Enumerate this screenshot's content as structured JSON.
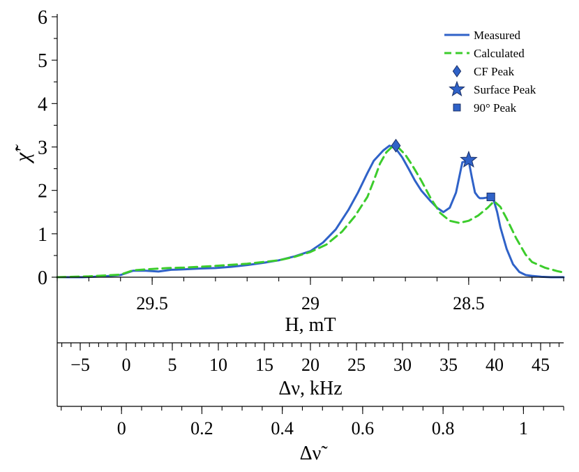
{
  "chart_data": {
    "type": "line",
    "ylabel": "χ̃′",
    "ylim": [
      0,
      6
    ],
    "y_ticks": [
      "0",
      "1",
      "2",
      "3",
      "4",
      "5",
      "6"
    ],
    "axes": [
      {
        "id": "field",
        "label": "H, mT",
        "range": [
          29.8,
          28.2
        ],
        "reversed": true,
        "major_ticks": [
          29.5,
          29,
          28.5
        ],
        "major_labels": [
          "29.5",
          "29",
          "28.5"
        ],
        "minor_step": 0.1
      },
      {
        "id": "freq",
        "label": "Δν, kHz",
        "range": [
          -7.5,
          47.5
        ],
        "major_ticks": [
          -5,
          0,
          5,
          10,
          15,
          20,
          25,
          30,
          35,
          40,
          45
        ],
        "major_labels": [
          "−5",
          "0",
          "5",
          "10",
          "15",
          "20",
          "25",
          "30",
          "35",
          "40",
          "45"
        ],
        "minor_step": 1
      },
      {
        "id": "norm",
        "label": "Δν̃",
        "range": [
          -0.16,
          1.1
        ],
        "major_ticks": [
          0,
          0.2,
          0.4,
          0.6,
          0.8,
          1
        ],
        "major_labels": [
          "0",
          "0.2",
          "0.4",
          "0.6",
          "0.8",
          "1"
        ],
        "minor_step": 0.05
      }
    ],
    "series": [
      {
        "name": "Measured",
        "style": "solid",
        "color": "#2f62c8",
        "x": [
          29.8,
          29.72,
          29.65,
          29.6,
          29.56,
          29.52,
          29.48,
          29.44,
          29.4,
          29.35,
          29.3,
          29.25,
          29.2,
          29.15,
          29.1,
          29.05,
          29.0,
          28.96,
          28.92,
          28.88,
          28.85,
          28.82,
          28.8,
          28.77,
          28.75,
          28.73,
          28.71,
          28.69,
          28.67,
          28.65,
          28.62,
          28.6,
          28.58,
          28.56,
          28.54,
          28.52,
          28.5,
          28.49,
          28.48,
          28.47,
          28.465,
          28.455,
          28.445,
          28.43,
          28.42,
          28.41,
          28.4,
          28.38,
          28.36,
          28.34,
          28.32,
          28.3,
          28.27,
          28.24,
          28.22,
          28.2
        ],
        "y": [
          0.0,
          0.0,
          0.02,
          0.05,
          0.15,
          0.15,
          0.13,
          0.17,
          0.18,
          0.2,
          0.21,
          0.24,
          0.28,
          0.33,
          0.39,
          0.48,
          0.6,
          0.8,
          1.1,
          1.55,
          1.95,
          2.4,
          2.68,
          2.92,
          3.03,
          2.96,
          2.76,
          2.5,
          2.23,
          2.0,
          1.75,
          1.6,
          1.5,
          1.6,
          1.95,
          2.65,
          2.68,
          2.3,
          1.95,
          1.85,
          1.82,
          1.82,
          1.83,
          1.85,
          1.75,
          1.5,
          1.15,
          0.65,
          0.3,
          0.12,
          0.05,
          0.03,
          0.01,
          0.0,
          0.0,
          0.0
        ]
      },
      {
        "name": "Calculated",
        "style": "dashed",
        "color": "#3ccc2c",
        "x": [
          29.8,
          29.7,
          29.6,
          29.56,
          29.52,
          29.5,
          29.45,
          29.4,
          29.3,
          29.2,
          29.1,
          29.05,
          29.0,
          28.95,
          28.9,
          28.86,
          28.82,
          28.8,
          28.78,
          28.76,
          28.74,
          28.72,
          28.7,
          28.68,
          28.65,
          28.62,
          28.59,
          28.56,
          28.53,
          28.5,
          28.47,
          28.44,
          28.42,
          28.4,
          28.38,
          28.35,
          28.32,
          28.3,
          28.26,
          28.22,
          28.2
        ],
        "y": [
          0.0,
          0.02,
          0.06,
          0.16,
          0.18,
          0.19,
          0.21,
          0.22,
          0.26,
          0.31,
          0.39,
          0.47,
          0.58,
          0.75,
          1.05,
          1.4,
          1.85,
          2.22,
          2.62,
          2.88,
          3.02,
          2.97,
          2.82,
          2.6,
          2.23,
          1.82,
          1.48,
          1.3,
          1.25,
          1.3,
          1.42,
          1.6,
          1.75,
          1.62,
          1.35,
          0.9,
          0.52,
          0.35,
          0.22,
          0.14,
          0.11
        ]
      }
    ],
    "markers": [
      {
        "name": "CF Peak",
        "shape": "diamond",
        "x": 28.73,
        "y": 3.03
      },
      {
        "name": "Surface Peak",
        "shape": "star",
        "x": 28.5,
        "y": 2.7
      },
      {
        "name": "90° Peak",
        "shape": "square",
        "x": 28.43,
        "y": 1.85
      }
    ],
    "legend_position": "top-right",
    "legend": [
      "Measured",
      "Calculated",
      "CF Peak",
      "Surface Peak",
      "90° Peak"
    ]
  }
}
